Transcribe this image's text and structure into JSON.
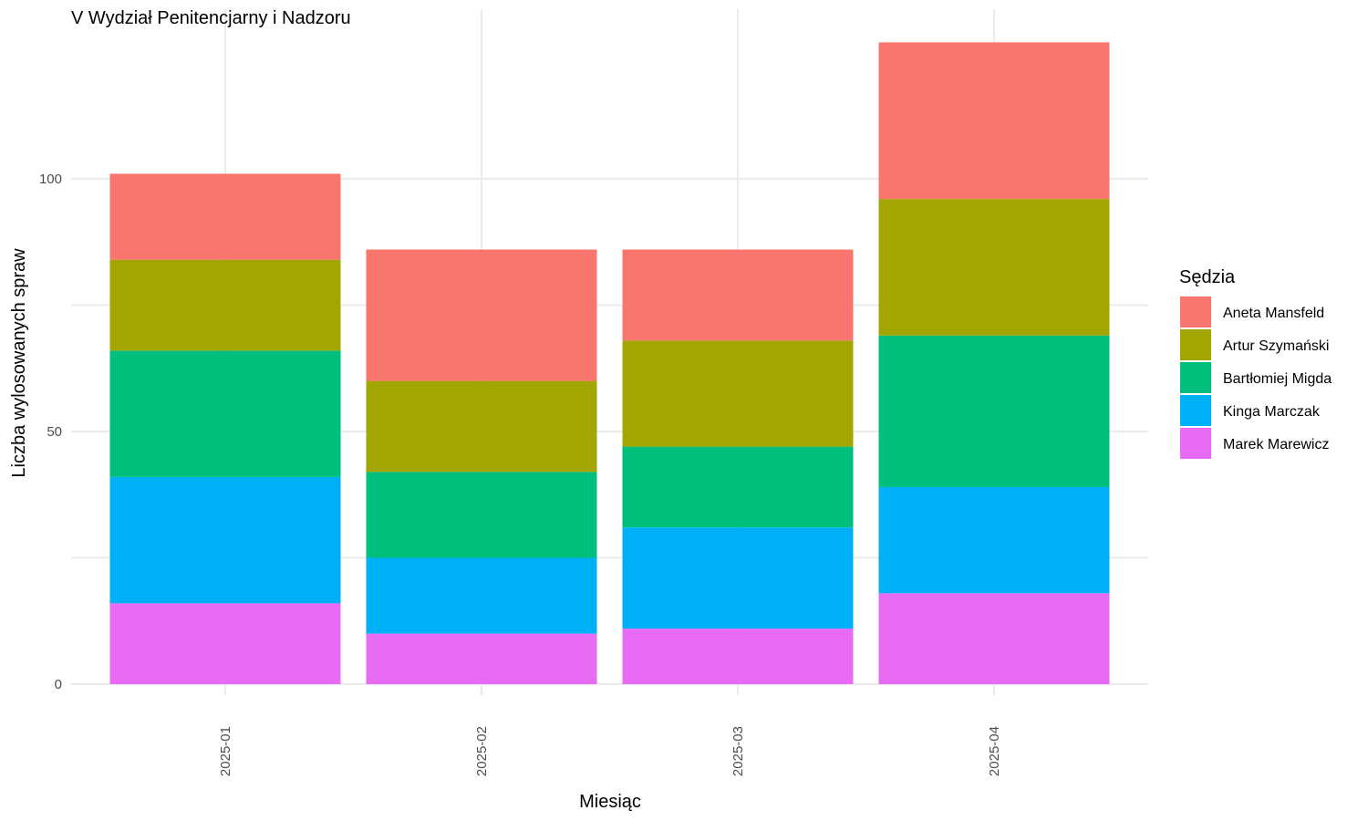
{
  "chart_data": {
    "type": "bar",
    "stacked": true,
    "title": "V Wydział Penitencjarny i Nadzoru",
    "xlabel": "Miesiąc",
    "ylabel": "Liczba wylosowanych spraw",
    "categories": [
      "2025-01",
      "2025-02",
      "2025-03",
      "2025-04"
    ],
    "ylim": [
      0,
      125
    ],
    "yticks": [
      0,
      50,
      100
    ],
    "grid": true,
    "legend": {
      "title": "Sędzia",
      "position": "right"
    },
    "series": [
      {
        "name": "Marek Marewicz",
        "color": "#E76BF3",
        "values": [
          16,
          10,
          11,
          18
        ]
      },
      {
        "name": "Kinga Marczak",
        "color": "#00B0F6",
        "values": [
          25,
          15,
          20,
          21
        ]
      },
      {
        "name": "Bartłomiej Migda",
        "color": "#00BF7D",
        "values": [
          25,
          17,
          16,
          30
        ]
      },
      {
        "name": "Artur Szymański",
        "color": "#A3A500",
        "values": [
          18,
          18,
          21,
          27
        ]
      },
      {
        "name": "Aneta Mansfeld",
        "color": "#F8766D",
        "values": [
          17,
          26,
          18,
          31
        ]
      }
    ]
  }
}
